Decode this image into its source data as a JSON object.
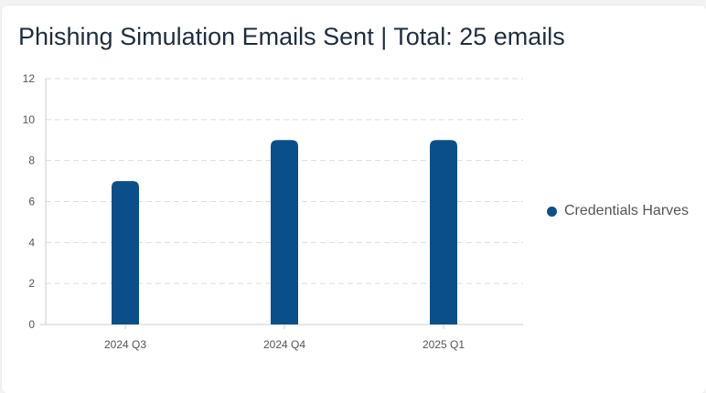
{
  "title": "Phishing Simulation Emails Sent | Total: 25 emails",
  "colors": {
    "bar": "#0b4f8a",
    "grid": "#dddddd",
    "axis": "#cccccc"
  },
  "chart_data": {
    "type": "bar",
    "categories": [
      "2024 Q3",
      "2024 Q4",
      "2025 Q1"
    ],
    "series": [
      {
        "name": "Credentials Harves",
        "values": [
          7,
          9,
          9
        ]
      }
    ],
    "ylim": [
      0,
      12
    ],
    "yticks": [
      "0",
      "2",
      "4",
      "6",
      "8",
      "10",
      "12"
    ],
    "grid": true,
    "legend": "right"
  }
}
